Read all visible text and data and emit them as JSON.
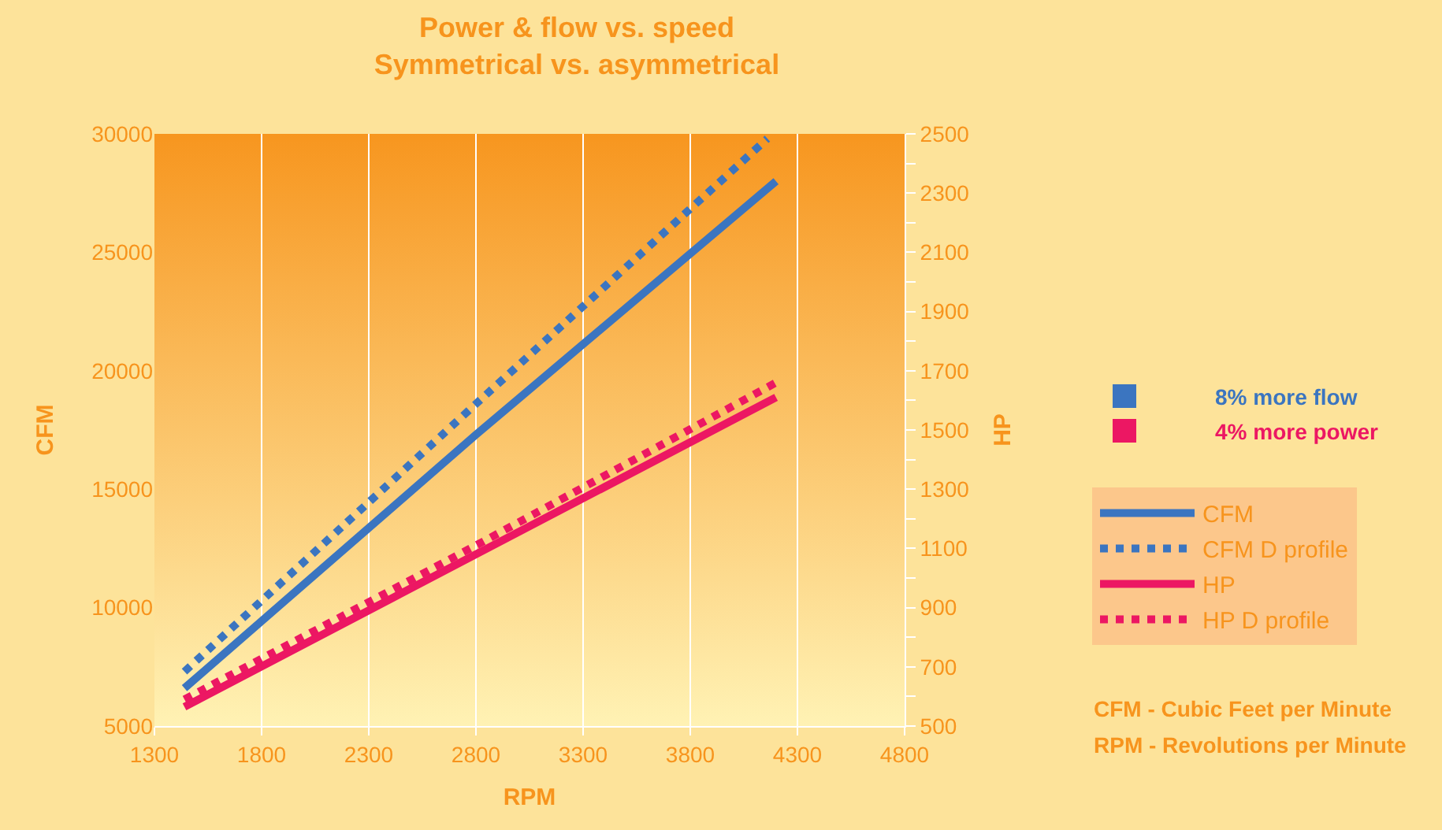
{
  "chart_data": {
    "type": "line",
    "title": "Power & flow vs. speed\nSymmetrical vs. asymmetrical",
    "xlabel": "RPM",
    "ylabel": "CFM",
    "y2label": "HP",
    "series": [
      {
        "name": "CFM",
        "color": "#3b75c0",
        "x": [
          1440,
          2800,
          4200
        ],
        "values": [
          6600,
          17300,
          28000
        ],
        "line_style": "solid"
      },
      {
        "name": "CFM D profile",
        "color": "#3b75c0",
        "x": [
          1440,
          2800,
          4160
        ],
        "values": [
          7300,
          18600,
          29800
        ],
        "line_style": "dotted"
      },
      {
        "name": "HP",
        "color": "#ec1763",
        "x": [
          1440,
          2800,
          4200
        ],
        "values": [
          565,
          1080,
          1610
        ],
        "line_style": "solid",
        "axis": "y2"
      },
      {
        "name": "HP D profile",
        "color": "#ec1763",
        "x": [
          1440,
          2800,
          4200
        ],
        "values": [
          590,
          1110,
          1660
        ],
        "line_style": "dotted",
        "axis": "y2"
      }
    ],
    "xlim": [
      1300,
      4800
    ],
    "xticks": [
      1300,
      1800,
      2300,
      2800,
      3300,
      3800,
      4300,
      4800
    ],
    "ylim": [
      5000,
      30000
    ],
    "yticks": [
      5000,
      10000,
      15000,
      20000,
      25000,
      30000
    ],
    "y2lim": [
      500,
      2500
    ],
    "y2ticks": [
      500,
      {
        "value": 600,
        "label": null
      },
      700,
      {
        "value": 800,
        "label": null
      },
      900,
      {
        "value": 1000,
        "label": null
      },
      1100,
      {
        "value": 1200,
        "label": null
      },
      1300,
      {
        "value": 1400,
        "label": null
      },
      1500,
      {
        "value": 1600,
        "label": null
      },
      1700,
      {
        "value": 1800,
        "label": null
      },
      1900,
      {
        "value": 2000,
        "label": null
      },
      2100,
      {
        "value": 2200,
        "label": null
      },
      2300,
      {
        "value": 2400,
        "label": null
      },
      2500
    ],
    "grid": "x",
    "legend": "right",
    "marker": "none",
    "annotations": [
      "8% more flow",
      "4% more power",
      "CFM - Cubic Feet per Minute",
      "RPM - Revolutions per Minute"
    ]
  }
}
